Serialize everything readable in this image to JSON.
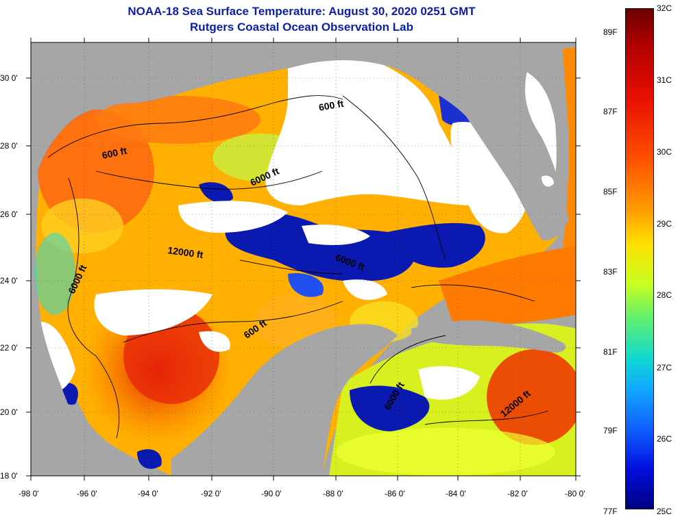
{
  "title": {
    "line1": "NOAA-18 Sea Surface Temperature:  August 30, 2020 0251 GMT",
    "line2": "Rutgers Coastal Ocean Observation Lab"
  },
  "axes": {
    "lat_labels": [
      "30 0'",
      "28 0'",
      "26 0'",
      "24 0'",
      "22 0'",
      "20 0'",
      "18 0'"
    ],
    "lon_labels": [
      "-98 0'",
      "-96 0'",
      "-94 0'",
      "-92 0'",
      "-90 0'",
      "-88 0'",
      "-86 0'",
      "-84 0'",
      "-82 0'",
      "-80 0'"
    ]
  },
  "contour_labels": [
    "600 ft",
    "600 ft",
    "6000 ft",
    "12000 ft",
    "6000 ft",
    "6000 ft",
    "600 ft",
    "6000 ft",
    "12000 ft"
  ],
  "colorbar": {
    "celsius": [
      "32C",
      "31C",
      "30C",
      "29C",
      "28C",
      "27C",
      "26C",
      "25C"
    ],
    "fahrenheit": [
      "89F",
      "87F",
      "85F",
      "83F",
      "81F",
      "79F",
      "77F"
    ]
  },
  "colors": {
    "land": "#a6a6a6",
    "cloud": "#ffffff",
    "title": "#0b1ea8"
  }
}
